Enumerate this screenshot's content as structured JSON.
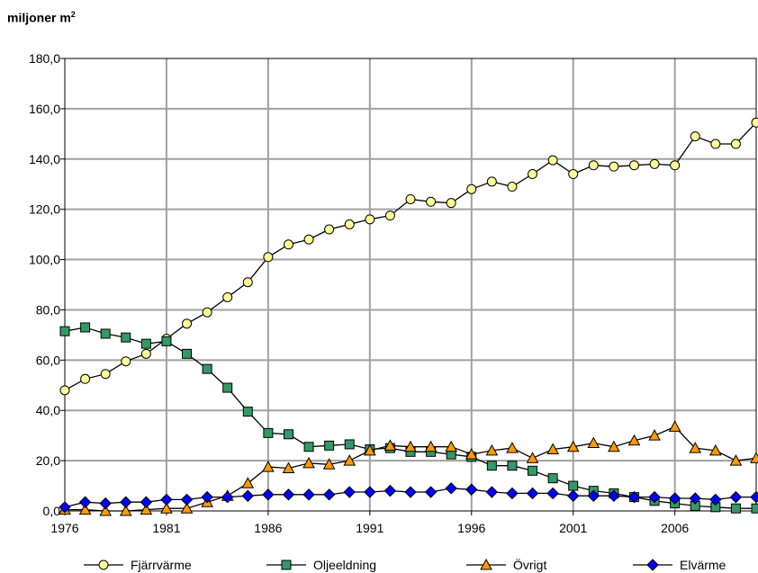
{
  "unit_label": {
    "text": "miljoner m",
    "superscript": "2"
  },
  "chart_data": {
    "type": "line",
    "title": "",
    "ylabel": "miljoner m²",
    "xlabel": "",
    "x": [
      1976,
      1977,
      1978,
      1979,
      1980,
      1981,
      1982,
      1983,
      1984,
      1985,
      1986,
      1987,
      1988,
      1989,
      1990,
      1991,
      1992,
      1993,
      1994,
      1995,
      1996,
      1997,
      1998,
      1999,
      2000,
      2001,
      2002,
      2003,
      2004,
      2005,
      2006,
      2007,
      2008,
      2009,
      2010
    ],
    "xlim": [
      1976,
      2010
    ],
    "ylim": [
      0,
      180
    ],
    "x_ticks": [
      "1976",
      "1981",
      "1986",
      "1991",
      "1996",
      "2001",
      "2006"
    ],
    "y_ticks": [
      "0,0",
      "20,0",
      "40,0",
      "60,0",
      "80,0",
      "100,0",
      "120,0",
      "140,0",
      "160,0",
      "180,0"
    ],
    "grid": true,
    "legend_position": "bottom",
    "series": [
      {
        "name": "Fjärrvärme",
        "marker": "circle",
        "color": "#ffff99",
        "values": [
          48,
          52.5,
          54.5,
          59.5,
          62.5,
          68.5,
          74.5,
          79,
          85,
          91,
          101,
          106,
          108,
          112,
          114,
          116,
          117.5,
          124,
          123,
          122.5,
          128,
          131,
          129,
          134,
          139.5,
          134,
          137.5,
          137,
          137.5,
          138,
          137.5,
          149,
          146,
          146,
          154.5
        ]
      },
      {
        "name": "Oljeeldning",
        "marker": "square",
        "color": "#339966",
        "values": [
          71.5,
          73,
          70.5,
          69,
          66.5,
          67.5,
          62.5,
          56.5,
          49,
          39.5,
          31,
          30.5,
          25.5,
          26,
          26.5,
          24.5,
          25,
          23.5,
          23.5,
          22.5,
          21.5,
          18,
          18,
          16,
          13,
          10,
          8,
          7,
          5.5,
          4,
          3,
          2,
          1.5,
          1,
          1
        ]
      },
      {
        "name": "Övrigt",
        "marker": "triangle",
        "color": "#ff9900",
        "values": [
          0.5,
          0.5,
          0,
          0,
          0.5,
          1,
          1,
          3.5,
          6,
          11,
          17.5,
          17,
          19,
          18.5,
          20,
          24,
          26,
          25.5,
          25.5,
          25.5,
          22.5,
          24,
          25,
          21,
          24.5,
          25.5,
          27,
          25.5,
          28,
          30,
          33.5,
          25,
          24,
          20,
          21
        ]
      },
      {
        "name": "Elvärme",
        "marker": "diamond",
        "color": "#0000ff",
        "values": [
          1.5,
          3.5,
          3,
          3.5,
          3.5,
          4.5,
          4.5,
          5.5,
          5.5,
          6,
          6.5,
          6.5,
          6.5,
          6.5,
          7.5,
          7.5,
          8,
          7.5,
          7.5,
          9,
          8.5,
          7.5,
          7,
          7,
          7,
          6,
          6,
          6,
          5.5,
          5.5,
          5,
          5,
          4.5,
          5.5,
          5.5
        ]
      }
    ]
  }
}
